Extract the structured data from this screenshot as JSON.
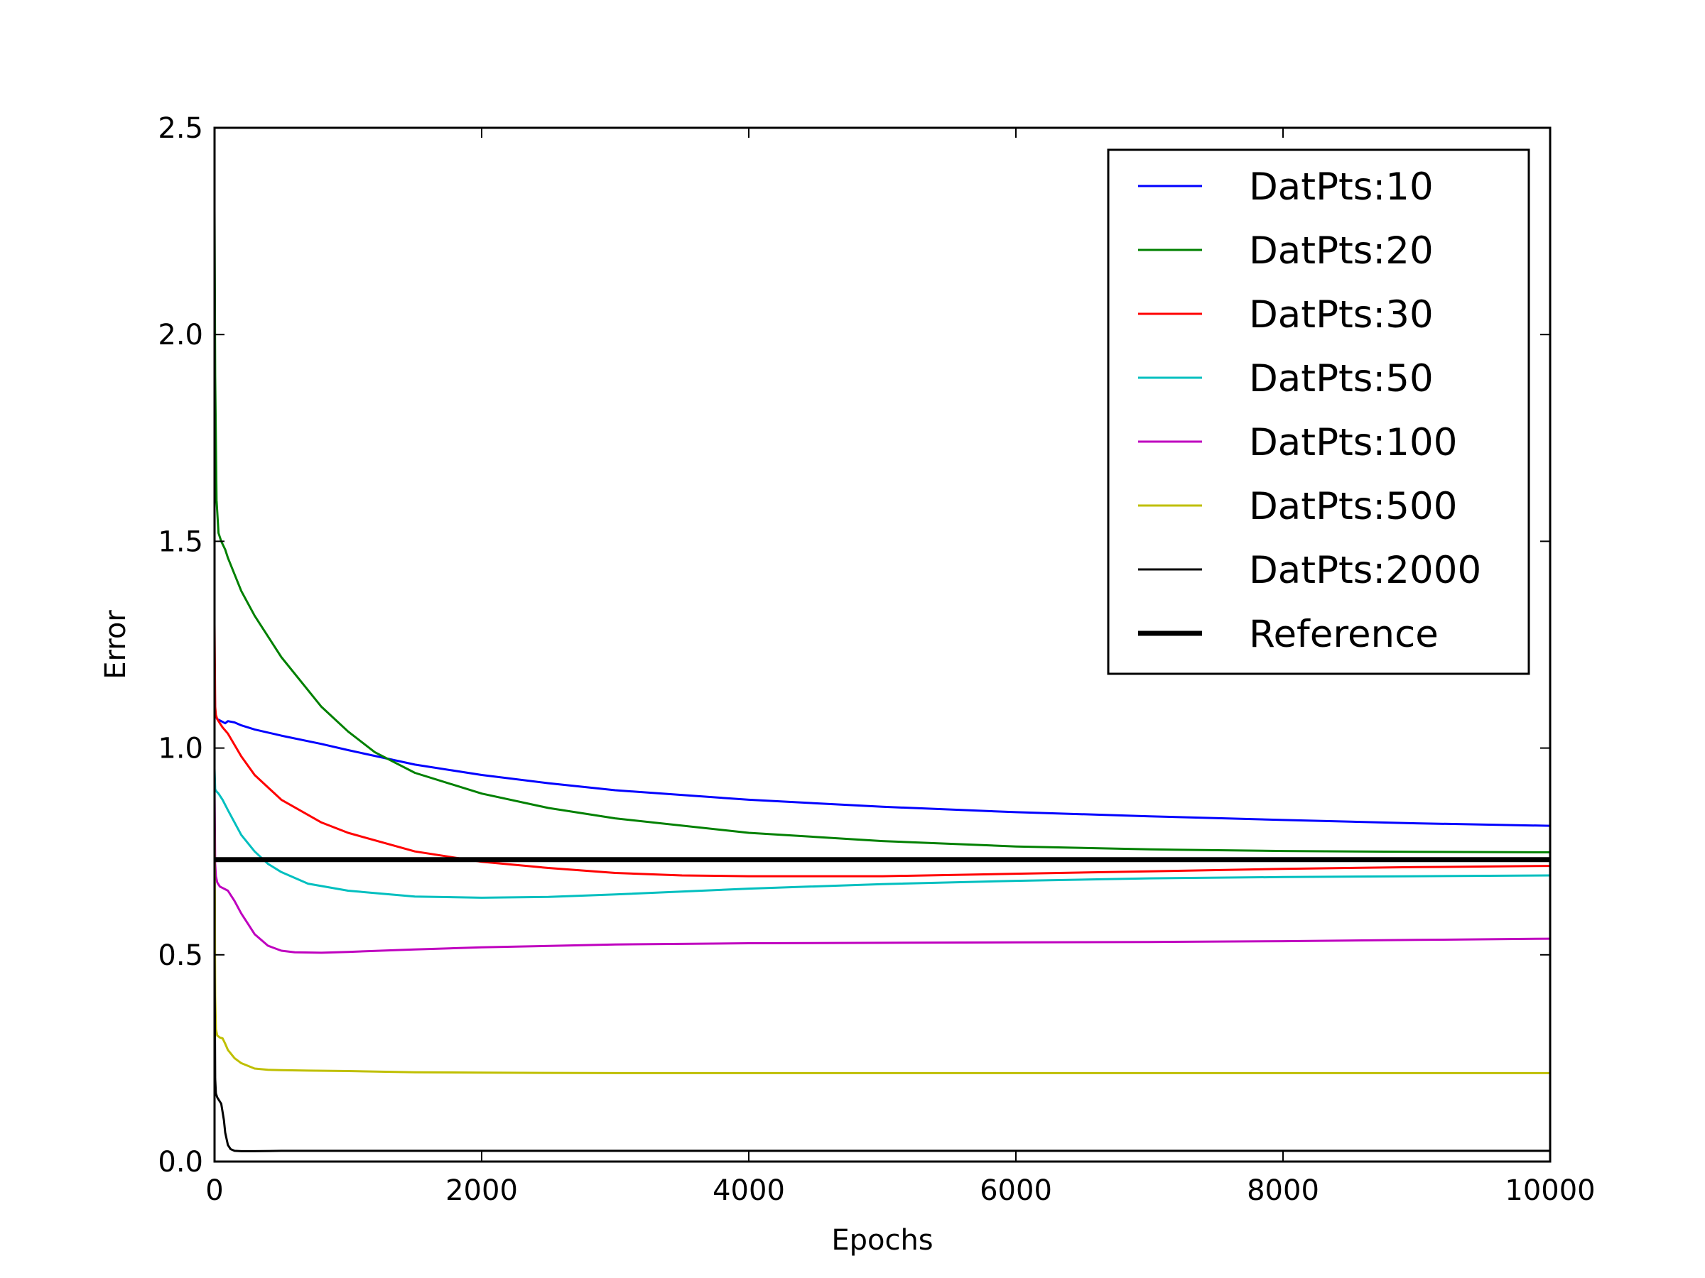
{
  "chart_data": {
    "type": "line",
    "xlabel": "Epochs",
    "ylabel": "Error",
    "xlim": [
      0,
      10000
    ],
    "ylim": [
      0.0,
      2.5
    ],
    "xticks": [
      0,
      2000,
      4000,
      6000,
      8000,
      10000
    ],
    "yticks": [
      0.0,
      0.5,
      1.0,
      1.5,
      2.0,
      2.5
    ],
    "xtick_labels": [
      "0",
      "2000",
      "4000",
      "6000",
      "8000",
      "10000"
    ],
    "ytick_labels": [
      "0.0",
      "0.5",
      "1.0",
      "1.5",
      "2.0",
      "2.5"
    ],
    "grid": false,
    "legend_position": "top-right",
    "series": [
      {
        "name": "DatPts:10",
        "color": "#0000ff",
        "x": [
          0,
          5,
          20,
          50,
          80,
          100,
          150,
          200,
          300,
          500,
          800,
          1000,
          1500,
          2000,
          2500,
          3000,
          4000,
          5000,
          6000,
          7000,
          8000,
          9000,
          10000
        ],
        "y": [
          1.2,
          1.08,
          1.07,
          1.065,
          1.06,
          1.065,
          1.062,
          1.055,
          1.045,
          1.03,
          1.01,
          0.995,
          0.96,
          0.935,
          0.915,
          0.898,
          0.875,
          0.858,
          0.845,
          0.835,
          0.826,
          0.818,
          0.812
        ]
      },
      {
        "name": "DatPts:20",
        "color": "#008000",
        "x": [
          0,
          5,
          15,
          30,
          50,
          80,
          100,
          150,
          200,
          300,
          500,
          800,
          1000,
          1200,
          1500,
          2000,
          2500,
          3000,
          4000,
          5000,
          6000,
          7000,
          8000,
          9000,
          10000
        ],
        "y": [
          2.3,
          1.9,
          1.6,
          1.52,
          1.5,
          1.48,
          1.46,
          1.42,
          1.38,
          1.32,
          1.22,
          1.1,
          1.04,
          0.99,
          0.94,
          0.89,
          0.855,
          0.83,
          0.795,
          0.775,
          0.762,
          0.755,
          0.751,
          0.749,
          0.748
        ]
      },
      {
        "name": "DatPts:30",
        "color": "#ff0000",
        "x": [
          0,
          5,
          10,
          20,
          40,
          60,
          100,
          200,
          300,
          500,
          800,
          1000,
          1500,
          2000,
          2500,
          3000,
          3500,
          4000,
          5000,
          6000,
          7000,
          8000,
          9000,
          10000
        ],
        "y": [
          1.3,
          1.1,
          1.08,
          1.07,
          1.06,
          1.05,
          1.035,
          0.98,
          0.935,
          0.875,
          0.82,
          0.795,
          0.75,
          0.725,
          0.71,
          0.698,
          0.692,
          0.69,
          0.69,
          0.696,
          0.702,
          0.708,
          0.712,
          0.715
        ]
      },
      {
        "name": "DatPts:50",
        "color": "#00bfbf",
        "x": [
          0,
          5,
          15,
          30,
          60,
          100,
          200,
          300,
          400,
          500,
          700,
          1000,
          1500,
          2000,
          2500,
          3000,
          4000,
          5000,
          6000,
          7000,
          8000,
          9000,
          10000
        ],
        "y": [
          0.95,
          0.9,
          0.895,
          0.89,
          0.875,
          0.85,
          0.79,
          0.75,
          0.72,
          0.7,
          0.672,
          0.655,
          0.641,
          0.638,
          0.64,
          0.646,
          0.66,
          0.671,
          0.679,
          0.685,
          0.688,
          0.69,
          0.692
        ]
      },
      {
        "name": "DatPts:100",
        "color": "#bf00bf",
        "x": [
          0,
          5,
          10,
          20,
          40,
          70,
          100,
          150,
          200,
          250,
          300,
          400,
          500,
          600,
          800,
          1000,
          1500,
          2000,
          3000,
          4000,
          5000,
          6000,
          7000,
          8000,
          9000,
          10000
        ],
        "y": [
          0.9,
          0.72,
          0.69,
          0.675,
          0.665,
          0.66,
          0.655,
          0.63,
          0.6,
          0.575,
          0.55,
          0.522,
          0.51,
          0.506,
          0.505,
          0.507,
          0.513,
          0.518,
          0.525,
          0.528,
          0.529,
          0.53,
          0.531,
          0.533,
          0.536,
          0.539
        ]
      },
      {
        "name": "DatPts:500",
        "color": "#bfbf00",
        "x": [
          0,
          5,
          10,
          20,
          40,
          60,
          80,
          100,
          150,
          200,
          300,
          400,
          500,
          700,
          1000,
          1500,
          2000,
          3000,
          4000,
          5000,
          6000,
          7000,
          8000,
          9000,
          10000
        ],
        "y": [
          0.85,
          0.4,
          0.32,
          0.305,
          0.3,
          0.298,
          0.285,
          0.27,
          0.25,
          0.238,
          0.225,
          0.222,
          0.221,
          0.22,
          0.219,
          0.216,
          0.215,
          0.214,
          0.214,
          0.214,
          0.214,
          0.214,
          0.214,
          0.214,
          0.214
        ]
      },
      {
        "name": "DatPts:2000",
        "color": "#000000",
        "x": [
          0,
          5,
          10,
          20,
          30,
          50,
          70,
          80,
          100,
          120,
          150,
          200,
          300,
          500,
          1000,
          2000,
          4000,
          6000,
          8000,
          10000
        ],
        "y": [
          0.5,
          0.2,
          0.165,
          0.155,
          0.15,
          0.14,
          0.1,
          0.07,
          0.04,
          0.03,
          0.026,
          0.025,
          0.025,
          0.026,
          0.026,
          0.026,
          0.026,
          0.026,
          0.026,
          0.026
        ]
      },
      {
        "name": "Reference",
        "color": "#000000",
        "linewidth": "thick",
        "x": [
          0,
          10000
        ],
        "y": [
          0.73,
          0.73
        ]
      }
    ]
  }
}
